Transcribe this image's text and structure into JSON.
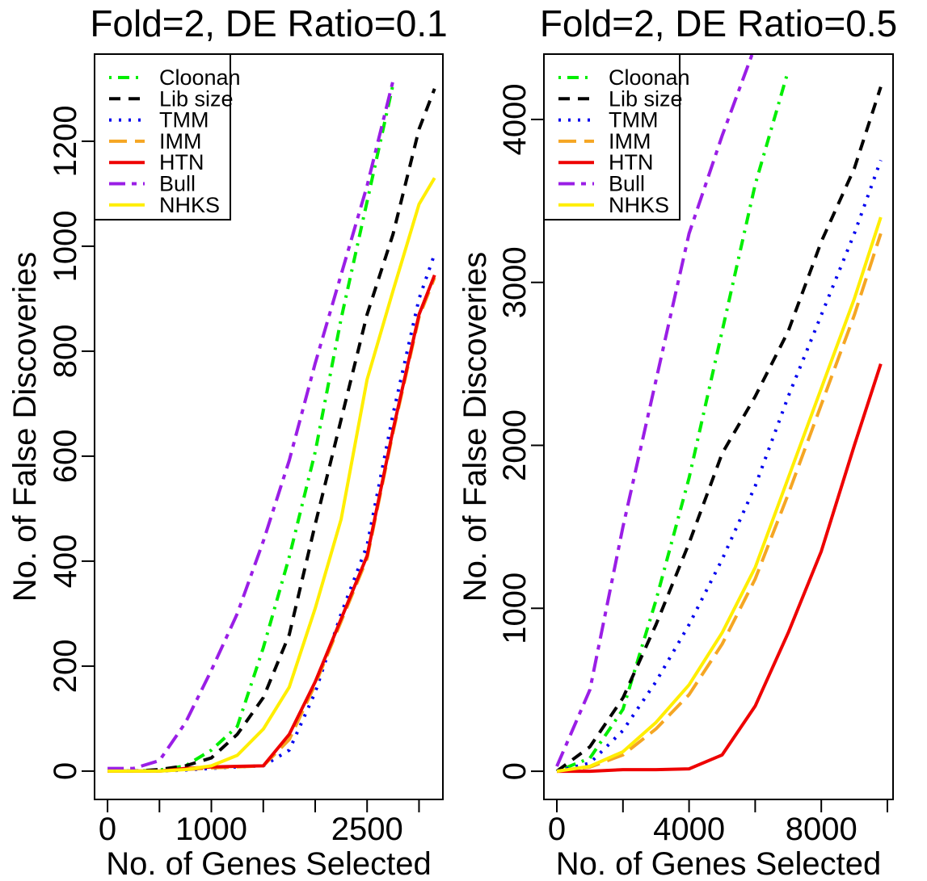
{
  "chart_data": [
    {
      "type": "line",
      "title": "Fold=2, DE Ratio=0.1",
      "x_label": "No. of Genes Selected",
      "y_label": "No. of False Discoveries",
      "x": [
        0,
        250,
        500,
        750,
        1000,
        1250,
        1500,
        1750,
        2000,
        2250,
        2500,
        2750,
        3000,
        3150
      ],
      "xlim": [
        -125,
        3230
      ],
      "ylim": [
        -54,
        1366
      ],
      "xticks": [
        0,
        1000,
        2500
      ],
      "xminorticks": [
        500,
        1500,
        2000,
        3000
      ],
      "yticks": [
        0,
        200,
        400,
        600,
        800,
        1000,
        1200
      ],
      "legend": "topleft",
      "series": [
        {
          "name": "Cloonan",
          "color": "#00ee00",
          "line_style": "dotdash",
          "values": [
            0,
            0,
            2,
            10,
            40,
            85,
            235,
            408,
            608,
            862,
            1085,
            1308,
            null,
            null
          ]
        },
        {
          "name": "Lib size",
          "color": "#000000",
          "line_style": "dashed",
          "values": [
            0,
            0,
            3,
            10,
            25,
            70,
            140,
            260,
            470,
            670,
            870,
            1023,
            1223,
            1300
          ]
        },
        {
          "name": "TMM",
          "color": "#0000ee",
          "line_style": "dotted",
          "values": [
            0,
            0,
            0,
            2,
            5,
            8,
            10,
            40,
            150,
            300,
            430,
            680,
            900,
            985
          ]
        },
        {
          "name": "IMM",
          "color": "#f5a623",
          "line_style": "longdash",
          "values": [
            0,
            0,
            0,
            3,
            6,
            8,
            10,
            60,
            165,
            285,
            405,
            645,
            865,
            940
          ]
        },
        {
          "name": "HTN",
          "color": "#ee0000",
          "line_style": "solid",
          "values": [
            0,
            0,
            0,
            5,
            8,
            9,
            10,
            70,
            170,
            290,
            410,
            650,
            870,
            945
          ]
        },
        {
          "name": "Bull",
          "color": "#9a1ee6",
          "line_style": "twodash",
          "values": [
            5,
            5,
            20,
            92,
            192,
            300,
            438,
            592,
            777,
            946,
            1115,
            1315,
            null,
            null
          ]
        },
        {
          "name": "NHKS",
          "color": "#ffee00",
          "line_style": "solid",
          "values": [
            0,
            0,
            0,
            3,
            10,
            30,
            80,
            160,
            310,
            480,
            746,
            915,
            1080,
            1130
          ]
        }
      ]
    },
    {
      "type": "line",
      "title": "Fold=2, DE Ratio=0.5",
      "x_label": "No. of Genes Selected",
      "y_label": "No. of False Discoveries",
      "x": [
        0,
        1000,
        2000,
        3000,
        4000,
        5000,
        6000,
        7000,
        8000,
        9000,
        9800
      ],
      "xlim": [
        -391,
        10171
      ],
      "ylim": [
        -173,
        4401
      ],
      "xticks": [
        0,
        4000,
        8000
      ],
      "xminorticks": [
        2000,
        6000,
        10000
      ],
      "yticks": [
        0,
        1000,
        2000,
        3000,
        4000
      ],
      "legend": "topleft",
      "series": [
        {
          "name": "Cloonan",
          "color": "#00ee00",
          "line_style": "dotdash",
          "values": [
            0,
            80,
            380,
            1050,
            1800,
            2700,
            3600,
            4300,
            null,
            null,
            null
          ]
        },
        {
          "name": "Lib size",
          "color": "#000000",
          "line_style": "dashed",
          "values": [
            0,
            150,
            450,
            900,
            1400,
            1950,
            2300,
            2700,
            3250,
            3700,
            4200
          ]
        },
        {
          "name": "TMM",
          "color": "#0000ee",
          "line_style": "dotted",
          "values": [
            0,
            50,
            250,
            550,
            900,
            1300,
            1750,
            2300,
            2800,
            3300,
            3750
          ]
        },
        {
          "name": "IMM",
          "color": "#f5a623",
          "line_style": "longdash",
          "values": [
            0,
            25,
            100,
            260,
            470,
            780,
            1180,
            1700,
            2250,
            2800,
            3300
          ]
        },
        {
          "name": "HTN",
          "color": "#ee0000",
          "line_style": "solid",
          "values": [
            0,
            0,
            10,
            10,
            15,
            100,
            400,
            850,
            1350,
            2000,
            2500
          ]
        },
        {
          "name": "Bull",
          "color": "#9a1ee6",
          "line_style": "twodash",
          "values": [
            30,
            500,
            1500,
            2400,
            3300,
            3900,
            4450,
            null,
            null,
            null,
            null
          ]
        },
        {
          "name": "NHKS",
          "color": "#ffee00",
          "line_style": "solid",
          "values": [
            0,
            30,
            120,
            300,
            530,
            850,
            1250,
            1800,
            2350,
            2900,
            3400
          ]
        }
      ]
    }
  ]
}
